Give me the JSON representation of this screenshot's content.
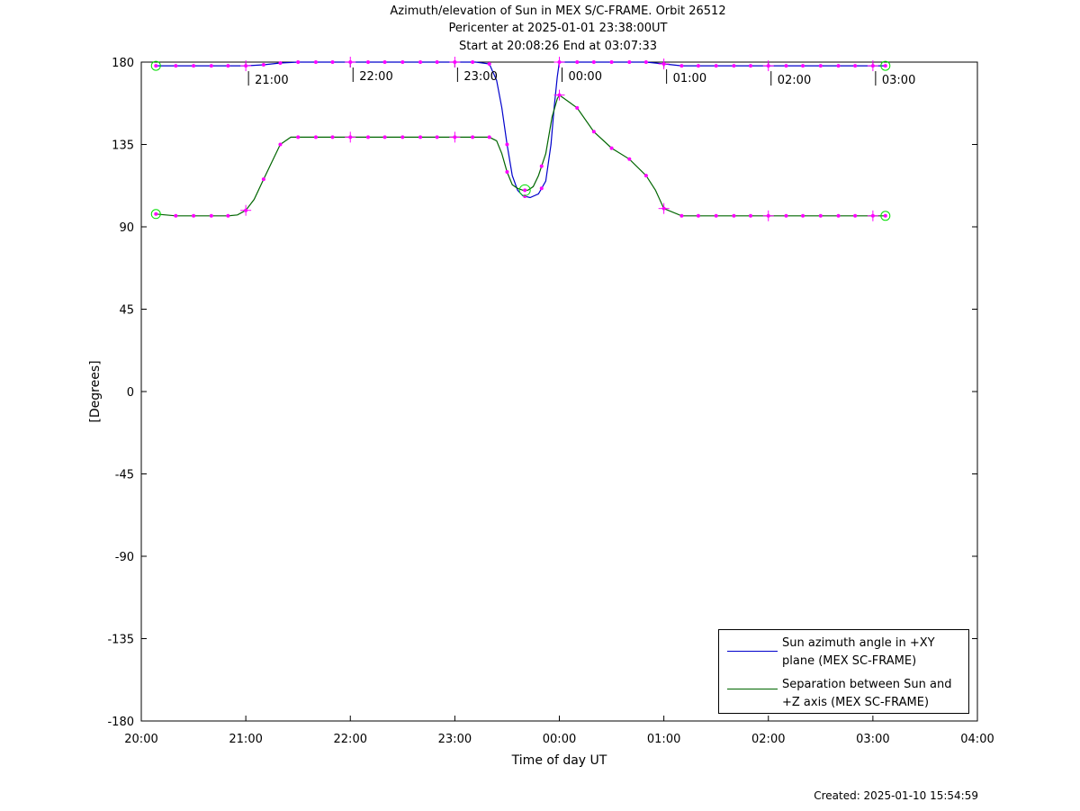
{
  "header": {
    "line1": "Azimuth/elevation of Sun in MEX S/C-FRAME.  Orbit 26512",
    "line2": "Pericenter at 2025-01-01 23:38:00UT",
    "line3": "Start at 20:08:26 End at 03:07:33"
  },
  "footer": {
    "created": "Created: 2025-01-10 15:54:59"
  },
  "colors": {
    "azimuth": "#0000cc",
    "separation": "#006600",
    "markers": "#ff00ff",
    "endpoints": "#00dd00"
  },
  "chart_data": {
    "type": "line",
    "xlabel": "Time of day UT",
    "ylabel": "[Degrees]",
    "xlim_hours": [
      20,
      28
    ],
    "ylim": [
      -180,
      180
    ],
    "xticks": [
      {
        "h": 20,
        "label": "20:00"
      },
      {
        "h": 21,
        "label": "21:00"
      },
      {
        "h": 22,
        "label": "22:00"
      },
      {
        "h": 23,
        "label": "23:00"
      },
      {
        "h": 24,
        "label": "00:00"
      },
      {
        "h": 25,
        "label": "01:00"
      },
      {
        "h": 26,
        "label": "02:00"
      },
      {
        "h": 27,
        "label": "03:00"
      },
      {
        "h": 28,
        "label": "04:00"
      }
    ],
    "yticks": [
      {
        "v": 180,
        "label": "180"
      },
      {
        "v": 135,
        "label": "135"
      },
      {
        "v": 90,
        "label": "90"
      },
      {
        "v": 45,
        "label": "45"
      },
      {
        "v": 0,
        "label": "0"
      },
      {
        "v": -45,
        "label": "-45"
      },
      {
        "v": -90,
        "label": "-90"
      },
      {
        "v": -135,
        "label": "-135"
      },
      {
        "v": -180,
        "label": "-180"
      }
    ],
    "hour_annotations": [
      {
        "h": 21,
        "label": "21:00"
      },
      {
        "h": 22,
        "label": "22:00"
      },
      {
        "h": 23,
        "label": "23:00"
      },
      {
        "h": 24,
        "label": "00:00"
      },
      {
        "h": 25,
        "label": "01:00"
      },
      {
        "h": 26,
        "label": "02:00"
      },
      {
        "h": 27,
        "label": "03:00"
      }
    ],
    "series": [
      {
        "name": "Sun azimuth angle in +XY plane (MEX SC-FRAME)",
        "x": [
          20.14,
          20.33,
          20.67,
          21.0,
          21.17,
          21.33,
          21.5,
          22.0,
          22.5,
          23.0,
          23.2,
          23.33,
          23.4,
          23.45,
          23.5,
          23.55,
          23.6,
          23.65,
          23.72,
          23.8,
          23.87,
          23.92,
          23.95,
          23.98,
          24.0,
          24.1,
          24.5,
          24.83,
          25.0,
          25.17,
          25.5,
          26.0,
          26.5,
          27.0,
          27.12
        ],
        "y": [
          178,
          178,
          178,
          178,
          178.5,
          179.5,
          180,
          180,
          180,
          180,
          180,
          179,
          170,
          155,
          135,
          118,
          110,
          107,
          106,
          108,
          115,
          135,
          155,
          172,
          180,
          180,
          180,
          180,
          179,
          178,
          178,
          178,
          178,
          178,
          178
        ]
      },
      {
        "name": "Separation between Sun and +Z axis (MEX SC-FRAME)",
        "x": [
          20.14,
          20.33,
          20.67,
          20.83,
          20.92,
          21.0,
          21.08,
          21.17,
          21.33,
          21.43,
          21.5,
          22.0,
          22.5,
          23.0,
          23.33,
          23.4,
          23.45,
          23.5,
          23.55,
          23.6,
          23.65,
          23.7,
          23.75,
          23.8,
          23.87,
          23.93,
          23.98,
          24.0,
          24.17,
          24.33,
          24.5,
          24.67,
          24.83,
          24.92,
          25.0,
          25.17,
          25.5,
          26.0,
          26.5,
          27.0,
          27.12
        ],
        "y": [
          97,
          96,
          96,
          96,
          96.5,
          99,
          105,
          116,
          135,
          139,
          139,
          139,
          139,
          139,
          139,
          137,
          130,
          120,
          113,
          111,
          110,
          110,
          112,
          118,
          130,
          150,
          160,
          162,
          155,
          142,
          133,
          127,
          118,
          110,
          100,
          96,
          96,
          96,
          96,
          96,
          96
        ]
      }
    ],
    "markers": [
      {
        "series": 0,
        "x": [
          20.14,
          20.33,
          20.5,
          20.67,
          20.83,
          21.0,
          21.17,
          21.33,
          21.5,
          21.67,
          21.83,
          22.0,
          22.17,
          22.33,
          22.5,
          22.67,
          22.83,
          23.0,
          23.17,
          23.33,
          23.5,
          23.67,
          23.83,
          24.0,
          24.17,
          24.33,
          24.5,
          24.67,
          24.83,
          25.0,
          25.17,
          25.33,
          25.5,
          25.67,
          25.83,
          26.0,
          26.17,
          26.33,
          26.5,
          26.67,
          26.83,
          27.0,
          27.12
        ]
      },
      {
        "series": 1,
        "x": [
          20.14,
          20.33,
          20.5,
          20.67,
          20.83,
          21.0,
          21.17,
          21.33,
          21.5,
          21.67,
          21.83,
          22.0,
          22.17,
          22.33,
          22.5,
          22.67,
          22.83,
          23.0,
          23.17,
          23.33,
          23.5,
          23.67,
          23.83,
          24.0,
          24.17,
          24.33,
          24.5,
          24.67,
          24.83,
          25.0,
          25.17,
          25.33,
          25.5,
          25.67,
          25.83,
          26.0,
          26.17,
          26.33,
          26.5,
          26.67,
          26.83,
          27.0,
          27.12
        ]
      }
    ],
    "legend_placement": "bottom-right"
  }
}
